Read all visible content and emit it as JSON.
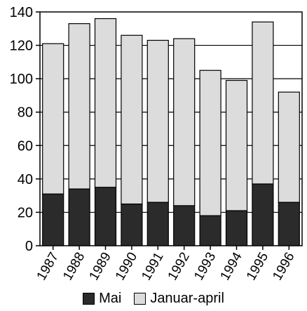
{
  "chart_data": {
    "type": "bar",
    "stacked": true,
    "categories": [
      "1987",
      "1988",
      "1989",
      "1990",
      "1991",
      "1992",
      "1993",
      "1994",
      "1995",
      "1996"
    ],
    "series": [
      {
        "name": "Mai",
        "values": [
          31,
          34,
          35,
          25,
          26,
          24,
          18,
          21,
          37,
          26
        ],
        "color": "#2b2b2b"
      },
      {
        "name": "Januar-april",
        "values": [
          90,
          99,
          101,
          101,
          97,
          100,
          87,
          78,
          97,
          66
        ],
        "color": "#dcdcdc"
      }
    ],
    "ylim": [
      0,
      140
    ],
    "yticks": [
      0,
      20,
      40,
      60,
      80,
      100,
      120,
      140
    ],
    "grid": true,
    "legend": "bottom",
    "title": "",
    "xlabel": "",
    "ylabel": ""
  }
}
